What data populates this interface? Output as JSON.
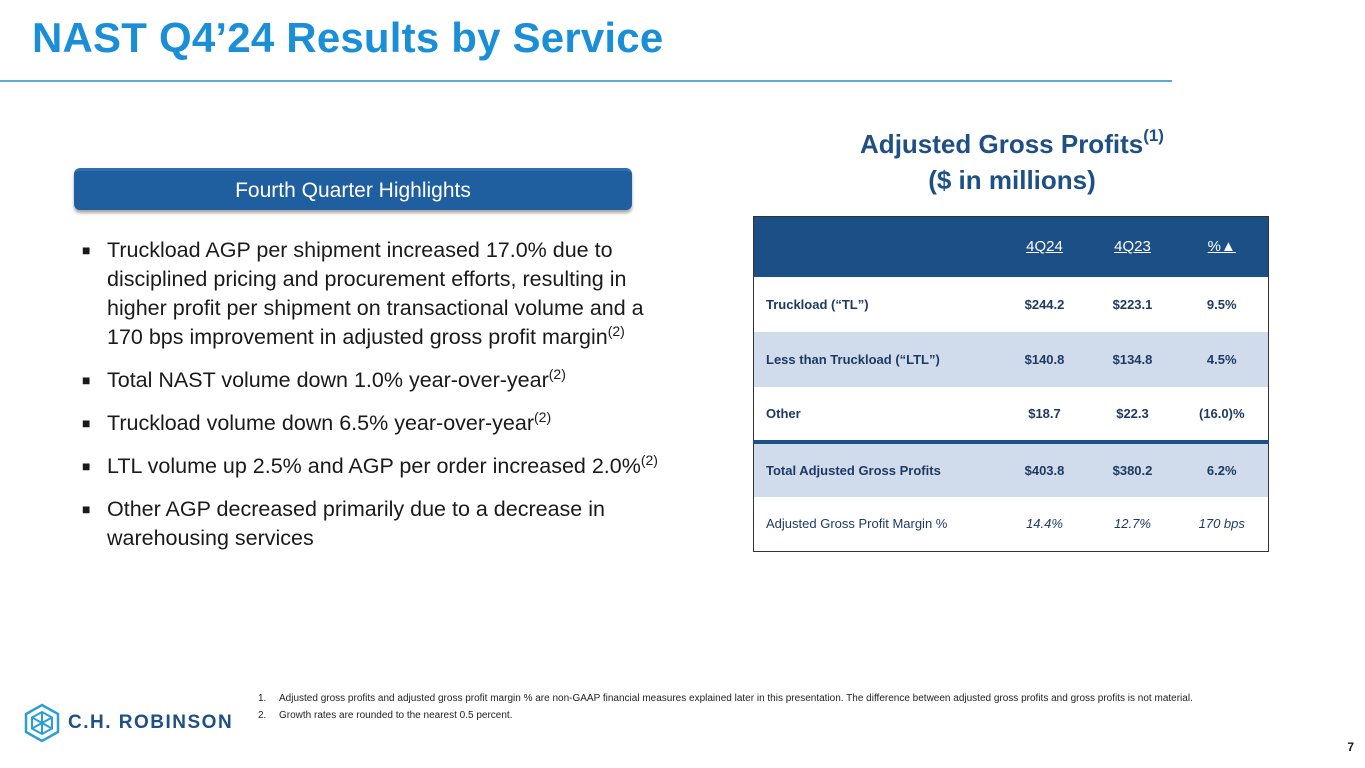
{
  "title": "NAST Q4’24 Results by Service",
  "highlights": {
    "header": "Fourth Quarter Highlights",
    "bullet_marker": "■",
    "items": [
      {
        "text": "Truckload AGP per shipment increased 17.0% due to disciplined pricing and procurement efforts, resulting in higher profit per shipment on transactional volume and a 170 bps improvement in adjusted gross profit margin",
        "note": "(2)"
      },
      {
        "text": "Total NAST volume down 1.0% year-over-year",
        "note": "(2)"
      },
      {
        "text": "Truckload volume down 6.5% year-over-year",
        "note": "(2)"
      },
      {
        "text": "LTL volume up 2.5% and AGP per order increased 2.0%",
        "note": "(2)"
      },
      {
        "text": "Other AGP decreased primarily due to a decrease in warehousing services",
        "note": ""
      }
    ]
  },
  "agp": {
    "heading": "Adjusted Gross Profits",
    "heading_note": "(1)",
    "subheading": "($ in millions)",
    "columns": [
      "",
      "4Q24",
      "4Q23",
      "%▲"
    ],
    "rows": [
      {
        "label": "Truckload (“TL”)",
        "q424": "$244.2",
        "q423": "$223.1",
        "pct": "9.5%"
      },
      {
        "label": "Less than Truckload (“LTL”)",
        "q424": "$140.8",
        "q423": "$134.8",
        "pct": "4.5%"
      },
      {
        "label": "Other",
        "q424": "$18.7",
        "q423": "$22.3",
        "pct": "(16.0)%"
      },
      {
        "label": "Total Adjusted Gross Profits",
        "q424": "$403.8",
        "q423": "$380.2",
        "pct": "6.2%"
      },
      {
        "label": "Adjusted Gross Profit Margin %",
        "q424": "14.4%",
        "q423": "12.7%",
        "pct": "170 bps"
      }
    ]
  },
  "footnotes": [
    {
      "num": "1.",
      "text": "Adjusted gross profits and adjusted gross profit margin % are non-GAAP financial measures explained later in this presentation. The difference between adjusted gross profits and gross profits is not material."
    },
    {
      "num": "2.",
      "text": "Growth rates are rounded to the nearest 0.5 percent."
    }
  ],
  "logo": {
    "text": "C.H. ROBINSON",
    "icon": "cube-logo-icon"
  },
  "page_number": "7",
  "colors": {
    "title": "#1a8fd8",
    "navy": "#1c4f86",
    "row_alt": "#d0dceb"
  }
}
